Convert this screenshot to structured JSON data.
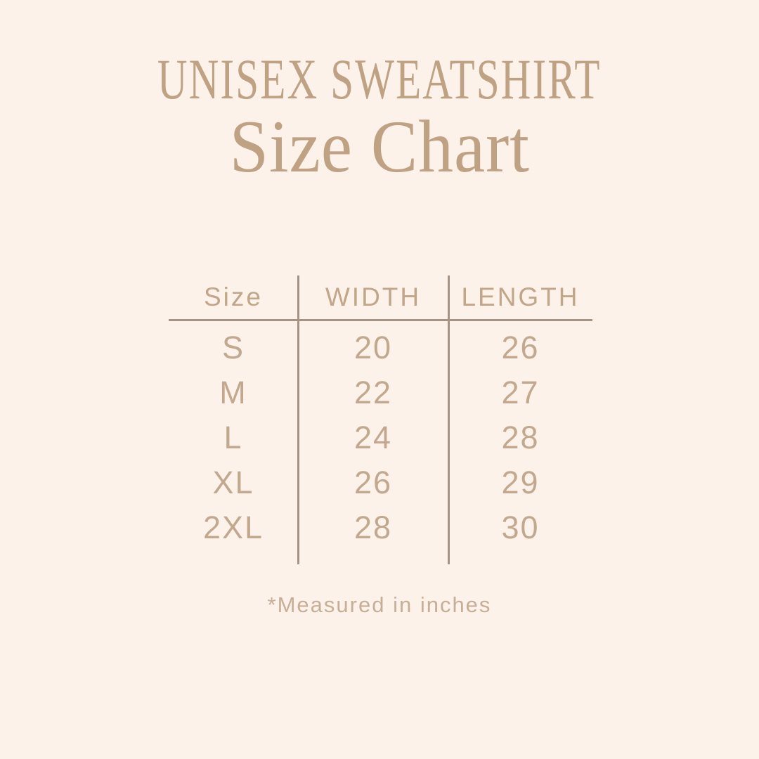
{
  "page": {
    "background_color": "#fcf2e9",
    "accent_text_color": "#bfa183",
    "table_text_color": "#c2a88e",
    "line_color": "#a59486"
  },
  "header": {
    "title": "UNISEX SWEATSHIRT",
    "subtitle": "Size Chart"
  },
  "table": {
    "columns": [
      "Size",
      "WIDTH",
      "LENGTH"
    ],
    "rows": [
      {
        "size": "S",
        "width": "20",
        "length": "26"
      },
      {
        "size": "M",
        "width": "22",
        "length": "27"
      },
      {
        "size": "L",
        "width": "24",
        "length": "28"
      },
      {
        "size": "XL",
        "width": "26",
        "length": "29"
      },
      {
        "size": "2XL",
        "width": "28",
        "length": "30"
      }
    ]
  },
  "footnote": "*Measured in inches",
  "chart_data": {
    "type": "table",
    "title": "UNISEX SWEATSHIRT Size Chart",
    "columns": [
      "Size",
      "WIDTH",
      "LENGTH"
    ],
    "unit": "inches",
    "rows": [
      [
        "S",
        20,
        26
      ],
      [
        "M",
        22,
        27
      ],
      [
        "L",
        24,
        28
      ],
      [
        "XL",
        26,
        29
      ],
      [
        "2XL",
        28,
        30
      ]
    ],
    "note": "*Measured in inches"
  }
}
